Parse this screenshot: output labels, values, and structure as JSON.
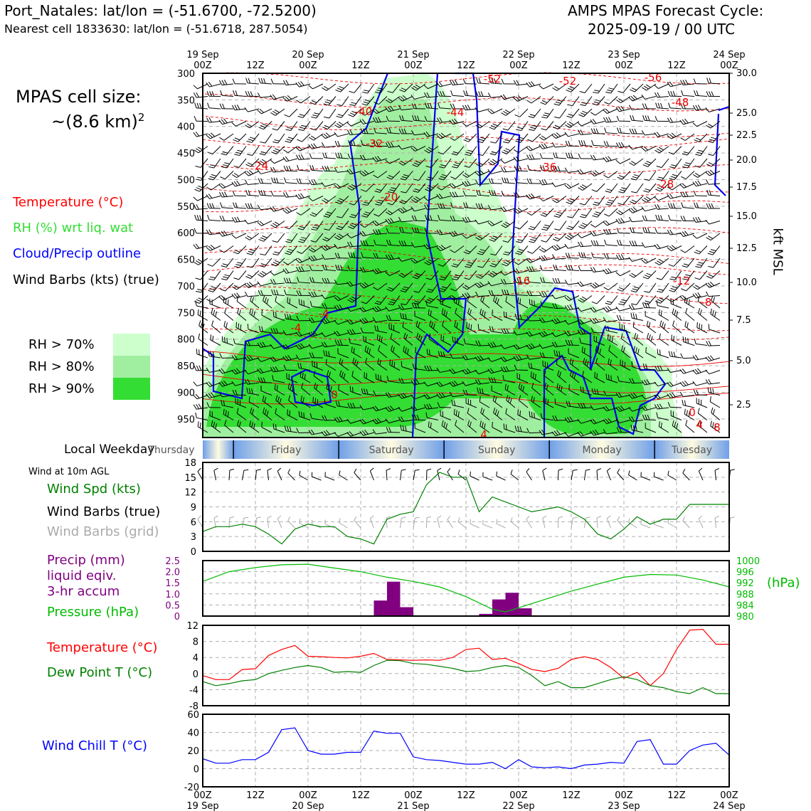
{
  "header": {
    "station_line": "Port_Natales: lat/lon = (-51.6700, -72.5200)",
    "cell_line": "Nearest cell 1833630: lat/lon = (-51.6718, 287.5054)",
    "cycle_line1": "AMPS MPAS Forecast Cycle:",
    "cycle_line2": "2025-09-19 / 00 UTC"
  },
  "left_panel": {
    "cell_size_label": "MPAS cell size:",
    "cell_size_value": "~(8.6 km)",
    "cell_size_exp": "2",
    "legend": {
      "temperature": {
        "label": "Temperature (°C)",
        "color": "#ff0000"
      },
      "rh": {
        "label": "RH (%) wrt liq. wat",
        "color": "#33dd33"
      },
      "cloud": {
        "label": "Cloud/Precip outline",
        "color": "#0000ff"
      },
      "wind": {
        "label": "Wind Barbs (kts) (true)",
        "color": "#000000"
      }
    },
    "rh_levels": [
      {
        "label": "RH > 70%",
        "color": "#ccffcc"
      },
      {
        "label": "RH > 80%",
        "color": "#a0eea0"
      },
      {
        "label": "RH > 90%",
        "color": "#33dd33"
      }
    ]
  },
  "time_axis": {
    "top_labels": [
      {
        "top": "19 Sep",
        "bottom": "00Z"
      },
      {
        "top": "",
        "bottom": "12Z"
      },
      {
        "top": "20 Sep",
        "bottom": "00Z"
      },
      {
        "top": "",
        "bottom": "12Z"
      },
      {
        "top": "21 Sep",
        "bottom": "00Z"
      },
      {
        "top": "",
        "bottom": "12Z"
      },
      {
        "top": "22 Sep",
        "bottom": "00Z"
      },
      {
        "top": "",
        "bottom": "12Z"
      },
      {
        "top": "23 Sep",
        "bottom": "00Z"
      },
      {
        "top": "",
        "bottom": "12Z"
      },
      {
        "top": "24 Sep",
        "bottom": "00Z"
      }
    ],
    "bottom_labels": [
      {
        "top": "00Z",
        "bottom": "19 Sep"
      },
      {
        "top": "12Z",
        "bottom": ""
      },
      {
        "top": "00Z",
        "bottom": "20 Sep"
      },
      {
        "top": "12Z",
        "bottom": ""
      },
      {
        "top": "00Z",
        "bottom": "21 Sep"
      },
      {
        "top": "12Z",
        "bottom": ""
      },
      {
        "top": "00Z",
        "bottom": "22 Sep"
      },
      {
        "top": "12Z",
        "bottom": ""
      },
      {
        "top": "00Z",
        "bottom": "23 Sep"
      },
      {
        "top": "12Z",
        "bottom": ""
      },
      {
        "top": "00Z",
        "bottom": "24 Sep"
      }
    ]
  },
  "weekday_bar": {
    "label": "Local Weekday",
    "days": [
      "Thursday",
      "Friday",
      "Saturday",
      "Sunday",
      "Monday",
      "Tuesday"
    ]
  },
  "chart_data": [
    {
      "type": "heatmap",
      "name": "vertical cross-section",
      "y_left_label": "",
      "pressure_ticks": [
        300,
        350,
        400,
        450,
        500,
        550,
        600,
        650,
        700,
        750,
        800,
        850,
        900,
        950
      ],
      "right_axis_label": "kft MSL",
      "height_ticks": [
        30.0,
        25.0,
        22.5,
        20.0,
        17.5,
        15.0,
        12.5,
        10.0,
        7.5,
        5.0,
        2.5
      ],
      "temperature_contour_labels": [
        "-52",
        "-52",
        "-56",
        "-48",
        "-40",
        "-44",
        "-32",
        "-36",
        "-24",
        "-28",
        "-20",
        "-16",
        "-12",
        "-8",
        "-4",
        "-4",
        "0",
        "0",
        "4",
        "8",
        "4"
      ],
      "grid": true
    },
    {
      "type": "line",
      "name": "wind 10m",
      "title": "Wind at 10m AGL",
      "series_label": "Wind Spd (kts)",
      "barbs_true_label": "Wind Barbs (true)",
      "barbs_grid_label": "Wind Barbs (grid)",
      "ylim": [
        0,
        18
      ],
      "yticks": [
        0,
        3,
        6,
        9,
        12,
        15,
        18
      ],
      "x_hours": [
        0,
        3,
        6,
        9,
        12,
        15,
        18,
        21,
        24,
        27,
        30,
        33,
        36,
        39,
        42,
        45,
        48,
        51,
        54,
        57,
        60,
        63,
        66,
        69,
        72,
        75,
        78,
        81,
        84,
        87,
        90,
        93,
        96,
        99,
        102,
        105,
        108,
        111,
        114,
        117,
        120
      ],
      "values": [
        4,
        5,
        5,
        5.5,
        5,
        3.5,
        1.5,
        4.5,
        5.5,
        5,
        5,
        3,
        2.5,
        1.5,
        6.5,
        7.5,
        8,
        13.5,
        16,
        15,
        15,
        8,
        11,
        10,
        9,
        8,
        8.5,
        9,
        8,
        6.5,
        3.5,
        2.5,
        4.5,
        7,
        5.5,
        6.5,
        6.5,
        9.5,
        9.5,
        9.5,
        9.5
      ],
      "color": "#008000",
      "grid": true
    },
    {
      "type": "bar",
      "name": "precip and pressure",
      "precip_label": "Precip (mm)",
      "precip_label2": "liquid eqiv.",
      "precip_label3": "3-hr accum",
      "pressure_label": "Pressure (hPa)",
      "pressure_unit": "(hPa)",
      "precip_ylim": [
        0,
        2.5
      ],
      "precip_ticks": [
        "0",
        "0.5",
        "1.0",
        "1.5",
        "2.0",
        "2.5"
      ],
      "pressure_ylim": [
        980,
        1000
      ],
      "pressure_ticks": [
        "980",
        "984",
        "988",
        "992",
        "996",
        "1000"
      ],
      "precip_bars": [
        {
          "start_hour": 39,
          "end_hour": 42,
          "value": 0.7
        },
        {
          "start_hour": 42,
          "end_hour": 45,
          "value": 1.55
        },
        {
          "start_hour": 45,
          "end_hour": 48,
          "value": 0.4
        },
        {
          "start_hour": 63,
          "end_hour": 66,
          "value": 0.1
        },
        {
          "start_hour": 66,
          "end_hour": 69,
          "value": 0.75
        },
        {
          "start_hour": 69,
          "end_hour": 72,
          "value": 1.05
        },
        {
          "start_hour": 72,
          "end_hour": 75,
          "value": 0.35
        }
      ],
      "pressure_hours": [
        0,
        6,
        12,
        18,
        24,
        30,
        36,
        42,
        48,
        54,
        60,
        66,
        69,
        72,
        78,
        84,
        90,
        96,
        102,
        108,
        114,
        120
      ],
      "pressure_values": [
        992.5,
        996,
        997.5,
        998.5,
        998.7,
        997.3,
        996,
        994,
        992.5,
        990.5,
        987,
        982.5,
        981.5,
        983,
        986,
        989,
        991.5,
        994,
        995,
        994.8,
        993,
        990.5
      ],
      "precip_color": "#800080",
      "pressure_color": "#00bb00",
      "grid": true
    },
    {
      "type": "line",
      "name": "temperature and dew point",
      "temp_label": "Temperature (°C)",
      "dew_label": "Dew Point T (°C)",
      "ylim": [
        -8,
        12
      ],
      "yticks": [
        -8,
        -4,
        0,
        4,
        8,
        12
      ],
      "x_hours": [
        0,
        3,
        6,
        9,
        12,
        15,
        18,
        21,
        24,
        27,
        30,
        33,
        36,
        39,
        42,
        45,
        48,
        51,
        54,
        57,
        60,
        63,
        66,
        69,
        72,
        75,
        78,
        81,
        84,
        87,
        90,
        93,
        96,
        99,
        102,
        105,
        108,
        111,
        114,
        117,
        120
      ],
      "temperature": [
        -0.5,
        -1.5,
        -1.5,
        1,
        1.2,
        4.5,
        6,
        7,
        4.3,
        4.2,
        4,
        3.9,
        4.3,
        5,
        3.5,
        3.4,
        3.3,
        3.4,
        3.3,
        4,
        6,
        6.3,
        3.5,
        3.8,
        2.5,
        1,
        0.5,
        1.3,
        3.5,
        4.2,
        3.5,
        1.5,
        -1.2,
        0.3,
        -3,
        0,
        6,
        10.8,
        11,
        7.3,
        7.3
      ],
      "dewpoint": [
        -2,
        -3,
        -2.5,
        -1.8,
        -1.5,
        0,
        0.8,
        1.5,
        2,
        1.5,
        0.3,
        0.5,
        0.3,
        2,
        3.3,
        3.2,
        2.5,
        2.3,
        1.8,
        1.3,
        0.5,
        0.7,
        1.5,
        2,
        1.5,
        -0.5,
        -3,
        -2,
        -3.5,
        -3.5,
        -2.5,
        -1.5,
        -0.8,
        -1.5,
        -3,
        -3.5,
        -4.5,
        -5,
        -3.5,
        -5,
        -5
      ],
      "temp_color": "#ff0000",
      "dew_color": "#008000",
      "grid": true
    },
    {
      "type": "line",
      "name": "wind chill",
      "label": "Wind Chill T (°C)",
      "ylim": [
        -20,
        60
      ],
      "yticks": [
        -20,
        0,
        20,
        40,
        60
      ],
      "x_hours": [
        0,
        3,
        6,
        9,
        12,
        15,
        18,
        21,
        24,
        27,
        30,
        33,
        36,
        39,
        42,
        45,
        48,
        51,
        54,
        57,
        60,
        63,
        66,
        69,
        72,
        75,
        78,
        81,
        84,
        87,
        90,
        93,
        96,
        99,
        102,
        105,
        108,
        111,
        114,
        117,
        120
      ],
      "values": [
        11,
        6,
        6,
        10,
        10,
        18,
        43,
        45,
        20,
        16,
        16,
        18,
        18,
        41.5,
        39,
        39,
        13,
        10,
        9,
        7,
        5,
        5,
        7,
        0,
        10,
        2,
        1,
        2,
        0,
        4,
        5,
        7,
        6,
        30,
        32,
        5,
        5,
        20,
        26,
        28,
        15
      ],
      "color": "#0000ff",
      "grid": true
    }
  ]
}
